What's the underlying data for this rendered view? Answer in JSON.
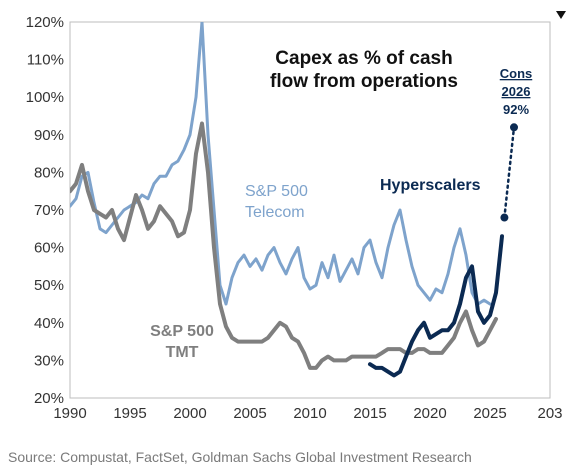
{
  "chart_data": {
    "type": "line",
    "title": "Capex as % of cash flow from operations",
    "xlabel": "",
    "ylabel": "",
    "xlim": [
      1990,
      2030
    ],
    "ylim": [
      20,
      120
    ],
    "x_tick_labels": [
      "1990",
      "1995",
      "2000",
      "2005",
      "2010",
      "2015",
      "2020",
      "2025",
      "203"
    ],
    "y_ticks": [
      20,
      30,
      40,
      50,
      60,
      70,
      80,
      90,
      100,
      110,
      120
    ],
    "y_tick_labels": [
      "20%",
      "30%",
      "40%",
      "50%",
      "60%",
      "70%",
      "80%",
      "90%",
      "100%",
      "110%",
      "120%"
    ],
    "series": [
      {
        "name": "S&P 500 Telecom",
        "color": "#7ea3cc",
        "x": [
          1990,
          1990.5,
          1991,
          1991.5,
          1992,
          1992.5,
          1993,
          1993.5,
          1994,
          1994.5,
          1995,
          1995.5,
          1996,
          1996.5,
          1997,
          1997.5,
          1998,
          1998.5,
          1999,
          1999.5,
          2000,
          2000.5,
          2001,
          2001.5,
          2002,
          2002.5,
          2003,
          2003.5,
          2004,
          2004.5,
          2005,
          2005.5,
          2006,
          2006.5,
          2007,
          2007.5,
          2008,
          2008.5,
          2009,
          2009.5,
          2010,
          2010.5,
          2011,
          2011.5,
          2012,
          2012.5,
          2013,
          2013.5,
          2014,
          2014.5,
          2015,
          2015.5,
          2016,
          2016.5,
          2017,
          2017.5,
          2018,
          2018.5,
          2019,
          2019.5,
          2020,
          2020.5,
          2021,
          2021.5,
          2022,
          2022.5,
          2023,
          2023.5,
          2024,
          2024.5,
          2025
        ],
        "values": [
          71,
          73,
          79,
          80,
          72,
          65,
          64,
          66,
          68,
          70,
          71,
          72,
          74,
          73,
          77,
          79,
          79,
          82,
          83,
          86,
          90,
          100,
          120,
          90,
          70,
          50,
          45,
          52,
          56,
          58,
          55,
          57,
          54,
          58,
          60,
          56,
          53,
          57,
          60,
          52,
          49,
          50,
          56,
          52,
          58,
          51,
          54,
          57,
          53,
          60,
          62,
          56,
          52,
          60,
          66,
          70,
          62,
          55,
          50,
          48,
          46,
          49,
          48,
          53,
          60,
          65,
          58,
          48,
          45,
          46,
          45
        ]
      },
      {
        "name": "S&P 500 TMT",
        "color": "#7f7f7f",
        "x": [
          1990,
          1990.5,
          1991,
          1991.5,
          1992,
          1992.5,
          1993,
          1993.5,
          1994,
          1994.5,
          1995,
          1995.5,
          1996,
          1996.5,
          1997,
          1997.5,
          1998,
          1998.5,
          1999,
          1999.5,
          2000,
          2000.5,
          2001,
          2001.5,
          2002,
          2002.5,
          2003,
          2003.5,
          2004,
          2004.5,
          2005,
          2005.5,
          2006,
          2006.5,
          2007,
          2007.5,
          2008,
          2008.5,
          2009,
          2009.5,
          2010,
          2010.5,
          2011,
          2011.5,
          2012,
          2012.5,
          2013,
          2013.5,
          2014,
          2014.5,
          2015,
          2015.5,
          2016,
          2016.5,
          2017,
          2017.5,
          2018,
          2018.5,
          2019,
          2019.5,
          2020,
          2020.5,
          2021,
          2021.5,
          2022,
          2022.5,
          2023,
          2023.5,
          2024,
          2024.5,
          2025,
          2025.5
        ],
        "values": [
          75,
          77,
          82,
          75,
          70,
          69,
          68,
          70,
          65,
          62,
          68,
          74,
          70,
          65,
          67,
          71,
          69,
          67,
          63,
          64,
          70,
          85,
          93,
          80,
          60,
          45,
          39,
          36,
          35,
          35,
          35,
          35,
          35,
          36,
          38,
          40,
          39,
          36,
          35,
          32,
          28,
          28,
          30,
          31,
          30,
          30,
          30,
          31,
          31,
          31,
          31,
          31,
          32,
          33,
          33,
          33,
          32,
          32,
          33,
          33,
          32,
          32,
          32,
          34,
          36,
          40,
          43,
          38,
          34,
          35,
          38,
          41
        ]
      },
      {
        "name": "Hyperscalers",
        "color": "#0b2a52",
        "x": [
          2015,
          2015.5,
          2016,
          2016.5,
          2017,
          2017.5,
          2018,
          2018.5,
          2019,
          2019.5,
          2020,
          2020.5,
          2021,
          2021.5,
          2022,
          2022.5,
          2023,
          2023.5,
          2024,
          2024.5,
          2025,
          2025.5,
          2026
        ],
        "values": [
          29,
          28,
          28,
          27,
          26,
          27,
          31,
          35,
          38,
          40,
          36,
          37,
          38,
          38,
          40,
          45,
          52,
          55,
          43,
          40,
          42,
          48,
          63
        ]
      }
    ],
    "projection": {
      "label_line1": "Cons",
      "label_line2": "2026",
      "label_line3": "92%",
      "color": "#0b2a52",
      "points": [
        {
          "x": 2026,
          "y": 63
        },
        {
          "x": 2026.2,
          "y": 68
        },
        {
          "x": 2027,
          "y": 92
        }
      ]
    },
    "annotations": {
      "title_line1": "Capex as % of cash",
      "title_line2": "flow from operations",
      "telecom_line1": "S&P 500",
      "telecom_line2": "Telecom",
      "tmt_line1": "S&P 500",
      "tmt_line2": "TMT",
      "hyperscalers": "Hyperscalers"
    },
    "grid": false,
    "legend": "inline labels"
  },
  "source": "Source: Compustat, FactSet, Goldman Sachs Global Investment Research"
}
